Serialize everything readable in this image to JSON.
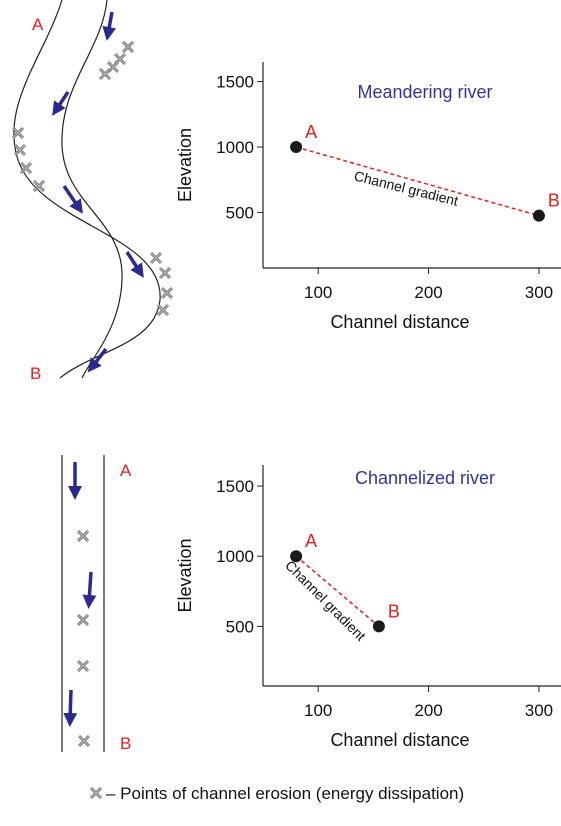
{
  "chart_data": [
    {
      "type": "line",
      "title": "Meandering river",
      "x_label": "Channel distance",
      "y_label": "Elevation",
      "x": [
        80,
        300
      ],
      "values": [
        1000,
        475
      ],
      "point_labels": [
        "A",
        "B"
      ],
      "annotation": "Channel gradient",
      "line_color": "#e02020",
      "marker_color": "#1a1a1a",
      "title_color": "#333399",
      "xlim": [
        50,
        320
      ],
      "ylim": [
        75,
        1650
      ],
      "xticks": [
        100,
        200,
        300
      ],
      "yticks": [
        500,
        1000,
        1500
      ]
    },
    {
      "type": "line",
      "title": "Channelized river",
      "x_label": "Channel distance",
      "y_label": "Elevation",
      "x": [
        80,
        155
      ],
      "values": [
        1000,
        500
      ],
      "point_labels": [
        "A",
        "B"
      ],
      "annotation": "Channel gradient",
      "line_color": "#e02020",
      "marker_color": "#1a1a1a",
      "title_color": "#333399",
      "xlim": [
        50,
        320
      ],
      "ylim": [
        75,
        1650
      ],
      "xticks": [
        100,
        200,
        300
      ],
      "yticks": [
        500,
        1000,
        1500
      ]
    }
  ],
  "river_diagrams": [
    {
      "labels": [
        "A",
        "B"
      ]
    },
    {
      "labels": [
        "A",
        "B"
      ]
    }
  ],
  "legend": {
    "text": "– Points of channel erosion (energy dissipation)"
  }
}
